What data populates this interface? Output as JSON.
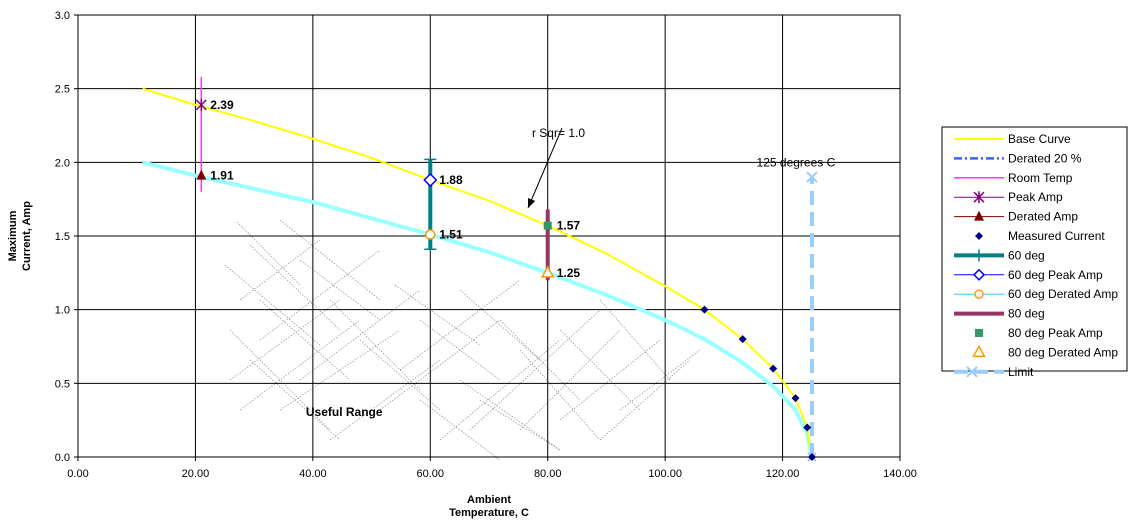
{
  "chart_data": {
    "type": "line",
    "title": "",
    "xlabel": [
      "Ambient",
      "Temperature, C"
    ],
    "ylabel": [
      "Maximum",
      "Current, Amp"
    ],
    "xlim": [
      0,
      140
    ],
    "ylim": [
      0,
      3
    ],
    "x_ticks": [
      "0.00",
      "20.00",
      "40.00",
      "60.00",
      "80.00",
      "100.00",
      "120.00",
      "140.00"
    ],
    "y_ticks": [
      "0.0",
      "0.5",
      "1.0",
      "1.5",
      "2.0",
      "2.5",
      "3.0"
    ],
    "grid": true,
    "legend_position": "right",
    "colors": {
      "base_curve": "#ffff00",
      "derated": "#99ffff",
      "room_temp": "#ff33ff",
      "peak_amp": "#800080",
      "derated_amp": "#800000",
      "measured": "#000080",
      "deg60": "#008080",
      "deg60_peak": "#0000ff",
      "deg60_derated": "#ff9900",
      "deg80": "#993366",
      "deg80_peak": "#339966",
      "deg80_derated": "#ff9900",
      "limit": "#99ccff"
    },
    "series": [
      {
        "name": "Base Curve",
        "x": [
          11,
          20,
          30,
          40,
          50,
          60,
          70,
          80,
          90,
          100,
          106.7,
          113.2,
          118.4,
          122.2,
          124.2,
          125
        ],
        "y": [
          2.5,
          2.39,
          2.28,
          2.16,
          2.03,
          1.88,
          1.74,
          1.57,
          1.38,
          1.16,
          1.0,
          0.8,
          0.6,
          0.4,
          0.2,
          0
        ]
      },
      {
        "name": "Derated 20 %",
        "x": [
          11,
          20,
          30,
          40,
          50,
          60,
          70,
          80,
          90,
          100,
          106.7,
          113.2,
          118.4,
          122.2,
          124.2,
          125
        ],
        "y": [
          2.0,
          1.91,
          1.82,
          1.73,
          1.62,
          1.51,
          1.39,
          1.25,
          1.1,
          0.93,
          0.8,
          0.64,
          0.48,
          0.32,
          0.16,
          0
        ]
      },
      {
        "name": "Room Temp",
        "x": [
          21,
          21
        ],
        "y": [
          1.8,
          2.58
        ]
      },
      {
        "name": "Peak Amp",
        "x": [
          21
        ],
        "y": [
          2.39
        ],
        "label": "2.39"
      },
      {
        "name": "Derated Amp",
        "x": [
          21
        ],
        "y": [
          1.91
        ],
        "label": "1.91"
      },
      {
        "name": "Measured Current",
        "x": [
          106.7,
          113.2,
          118.4,
          122.2,
          124.2,
          125
        ],
        "y": [
          1.0,
          0.8,
          0.6,
          0.4,
          0.2,
          0.0
        ]
      },
      {
        "name": "60 deg",
        "x": [
          60,
          60
        ],
        "y": [
          1.41,
          2.02
        ]
      },
      {
        "name": "60 deg Peak Amp",
        "x": [
          60
        ],
        "y": [
          1.88
        ],
        "label": "1.88"
      },
      {
        "name": "60 deg Derated Amp",
        "x": [
          60
        ],
        "y": [
          1.51
        ],
        "label": "1.51"
      },
      {
        "name": "80 deg",
        "x": [
          80,
          80
        ],
        "y": [
          1.2,
          1.68
        ]
      },
      {
        "name": "80 deg Peak Amp",
        "x": [
          80
        ],
        "y": [
          1.57
        ],
        "label": "1.57"
      },
      {
        "name": "80 deg Derated Amp",
        "x": [
          80
        ],
        "y": [
          1.25
        ],
        "label": "1.25"
      },
      {
        "name": "Limit",
        "x": [
          125,
          125
        ],
        "y": [
          0,
          1.9
        ]
      }
    ],
    "annotations": [
      {
        "text": "r Sqr= 1.0",
        "x": 78,
        "y": 2.2
      },
      {
        "text": "125 degrees C",
        "x": 125,
        "y": 1.93
      },
      {
        "text": "Useful Range",
        "x": 45,
        "y": 0.25
      }
    ]
  }
}
